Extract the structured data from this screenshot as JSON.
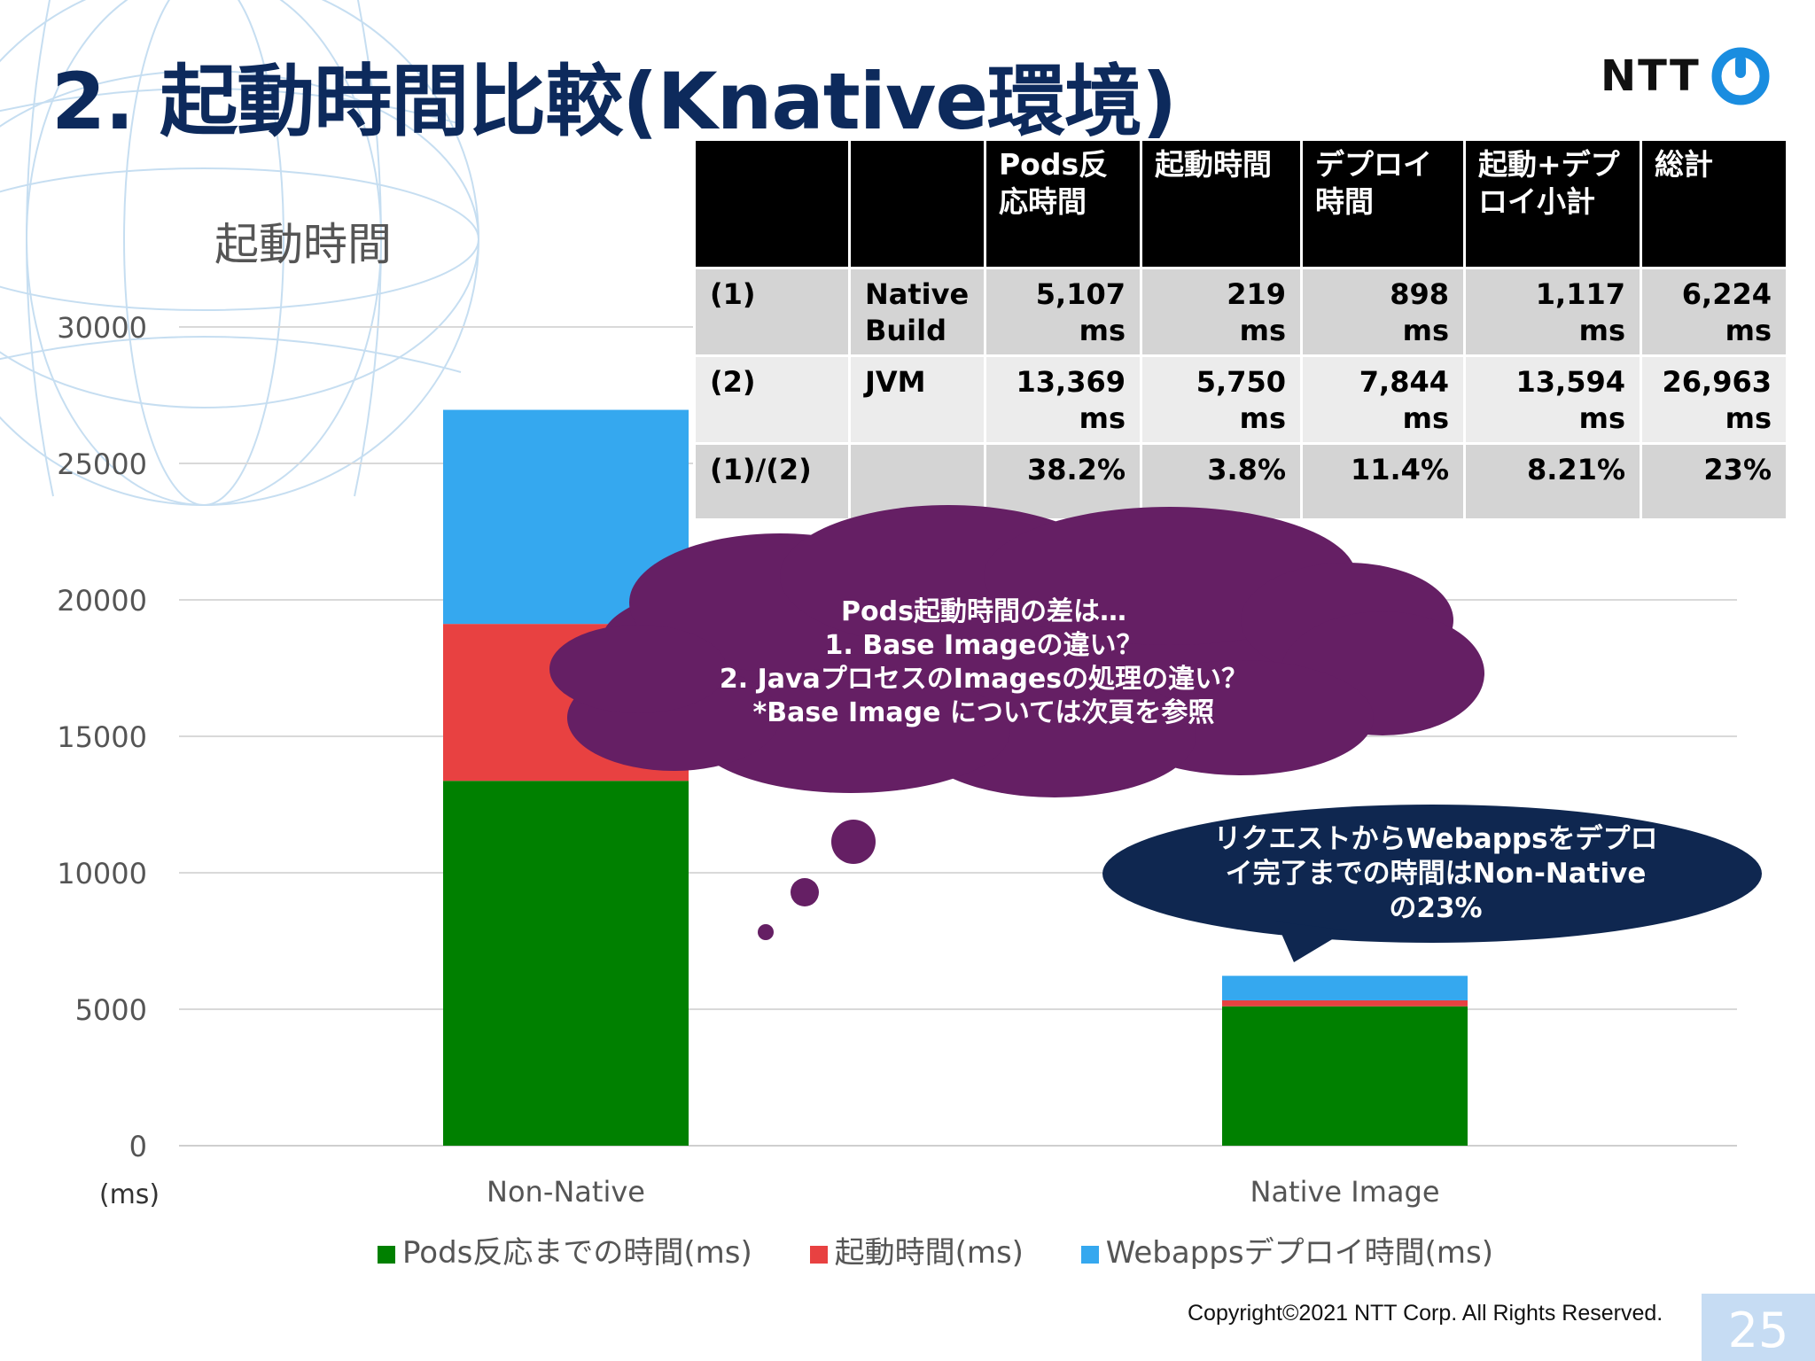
{
  "slide": {
    "title": "2. 起動時間比較(Knative環境)",
    "logo_text": "NTT",
    "copyright": "Copyright©2021  NTT Corp. All Rights Reserved.",
    "page_number": "25",
    "accent_color": "#0d2a5c"
  },
  "chart_data": {
    "type": "bar",
    "stacked": true,
    "title": "起動時間",
    "xlabel": "",
    "ylabel": "(ms)",
    "categories": [
      "Non-Native",
      "Native Image"
    ],
    "ylim": [
      0,
      30000
    ],
    "yticks": [
      "0",
      "5000",
      "10000",
      "15000",
      "20000",
      "25000",
      "30000"
    ],
    "grid": true,
    "legend_position": "bottom",
    "series": [
      {
        "name": "Pods反応までの時間(ms)",
        "color": "#008000",
        "values": [
          13369,
          5107
        ]
      },
      {
        "name": "起動時間(ms)",
        "color": "#e84141",
        "values": [
          5750,
          219
        ]
      },
      {
        "name": "Webappsデプロイ時間(ms)",
        "color": "#35a8ef",
        "values": [
          7844,
          898
        ]
      }
    ]
  },
  "table": {
    "headers": [
      "",
      "",
      "Pods反応時間",
      "起動時間",
      "デプロイ時間",
      "起動+デプロイ小計",
      "総計"
    ],
    "rows": [
      {
        "id": "(1)",
        "name": "Native Build",
        "v1": "5,107",
        "u1": "ms",
        "v2": "219",
        "u2": "ms",
        "v3": "898",
        "u3": "ms",
        "v4": "1,117",
        "u4": "ms",
        "v5": "6,224",
        "u5": "ms"
      },
      {
        "id": "(2)",
        "name": "JVM",
        "v1": "13,369",
        "u1": "ms",
        "v2": "5,750",
        "u2": "ms",
        "v3": "7,844",
        "u3": "ms",
        "v4": "13,594",
        "u4": "ms",
        "v5": "26,963",
        "u5": "ms"
      },
      {
        "id": "(1)/(2)",
        "name": "",
        "v1": "38.2%",
        "u1": "",
        "v2": "3.8%",
        "u2": "",
        "v3": "11.4%",
        "u3": "",
        "v4": "8.21%",
        "u4": "",
        "v5": "23%",
        "u5": ""
      }
    ]
  },
  "thought_cloud": {
    "lines": [
      "Pods起動時間の差は…",
      "1.   Base Imageの違い？",
      "2. JavaプロセスのImagesの処理の違い？",
      "*Base Image については次頁を参照"
    ],
    "color": "#651f64"
  },
  "callout": {
    "lines": [
      "リクエストからWebappsをデプロ",
      "イ完了までの時間はNon-Native",
      "の23%"
    ],
    "color": "#0f2750"
  }
}
